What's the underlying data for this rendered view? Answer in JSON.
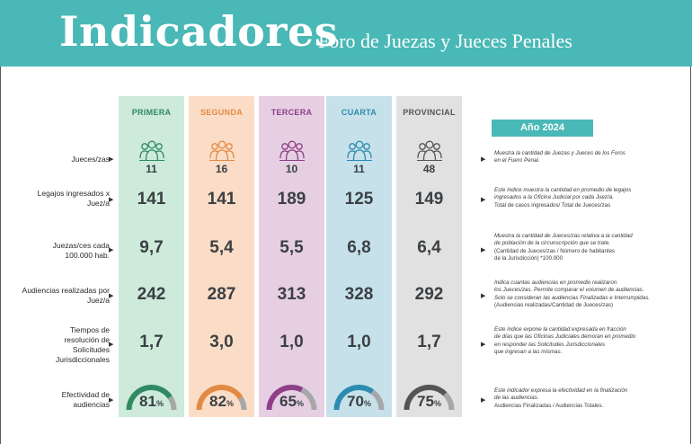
{
  "header": {
    "title": "Indicadores",
    "subtitle": "Foro de Juezas y Jueces Penales"
  },
  "year_badge": "Año 2024",
  "columns": [
    {
      "label": "PRIMERA",
      "bg": "#cdeadb",
      "accent": "#2f8a62",
      "gauge_color": "#2f8a62"
    },
    {
      "label": "SEGUNDA",
      "bg": "#fbdcc6",
      "accent": "#e28a45",
      "gauge_color": "#e28a45"
    },
    {
      "label": "TERCERA",
      "bg": "#e6cfe3",
      "accent": "#8e3f86",
      "gauge_color": "#8e3f86"
    },
    {
      "label": "CUARTA",
      "bg": "#c6e1ea",
      "accent": "#2c8bb0",
      "gauge_color": "#2c8bb0"
    },
    {
      "label": "PROVINCIAL",
      "bg": "#e1e1e1",
      "accent": "#555555",
      "gauge_color": "#555555"
    }
  ],
  "rows": [
    {
      "label": "Jueces/zas",
      "values": [
        "11",
        "16",
        "10",
        "11",
        "48"
      ],
      "icon": "people-group-icon",
      "desc_italic": [
        "Muestra la cantidad de Juezas y Jueces de los Foros",
        "en el Fuero Penal."
      ],
      "desc_bold": []
    },
    {
      "label": "Legajos ingresados x Juez/a",
      "values": [
        "141",
        "141",
        "189",
        "125",
        "149"
      ],
      "desc_italic": [
        "Este índice muestra la cantidad en promedio de legajos",
        "ingresados a la Oficina Judicial por cada Juez/a."
      ],
      "desc_bold": [
        "Total de casos ingresados/ Total de Jueces/zas"
      ]
    },
    {
      "label": "Juezas/ces cada 100.000 hab.",
      "values": [
        "9,7",
        "5,4",
        "5,5",
        "6,8",
        "6,4"
      ],
      "desc_italic": [
        "Muestra la cantidad de Jueces/zas relativa a la cantidad",
        "de población de la circunscripción que se trate."
      ],
      "desc_bold": [
        "(Cantidad de Jueces/zas / Número de habitantes",
        "de la Jurisdicción) *100.000"
      ]
    },
    {
      "label": "Audiencias realizadas por Juez/a",
      "values": [
        "242",
        "287",
        "313",
        "328",
        "292"
      ],
      "desc_italic": [
        "Indica cuantas audiencias en promedio realizaron",
        "los Jueces/zas. Permite comparar el volumen de audiencias.",
        "Solo se consideran las audiencias Finalizadas e Interrumpidas."
      ],
      "desc_bold": [
        "(Audiencias realizadas/Cantidad de Jueces/zas)"
      ]
    },
    {
      "label": "Tiempos de resolución de Solicitudes Jurisdiccionales",
      "values": [
        "1,7",
        "3,0",
        "1,0",
        "1,0",
        "1,7"
      ],
      "desc_italic": [
        "Este índice expone la cantidad expresada en fracción",
        "de días que las Oficinas Judiciales demoran en promedio",
        "en responder las Solicitudes Jurisdiccionales",
        "que ingresan a las mismas."
      ],
      "desc_bold": []
    },
    {
      "label": "Efectividad de audiencias",
      "gauges": [
        {
          "value": 81,
          "text": "81",
          "unit": "%"
        },
        {
          "value": 82,
          "text": "82",
          "unit": "%"
        },
        {
          "value": 65,
          "text": "65",
          "unit": "%"
        },
        {
          "value": 70,
          "text": "70",
          "unit": "%"
        },
        {
          "value": 75,
          "text": "75",
          "unit": "%"
        }
      ],
      "desc_italic": [
        "Este indicador expresa la efectividad en la finalización",
        "de las audiencias."
      ],
      "desc_bold": [
        "Audiencias Finalizadas / Audiencias Totales."
      ]
    }
  ]
}
